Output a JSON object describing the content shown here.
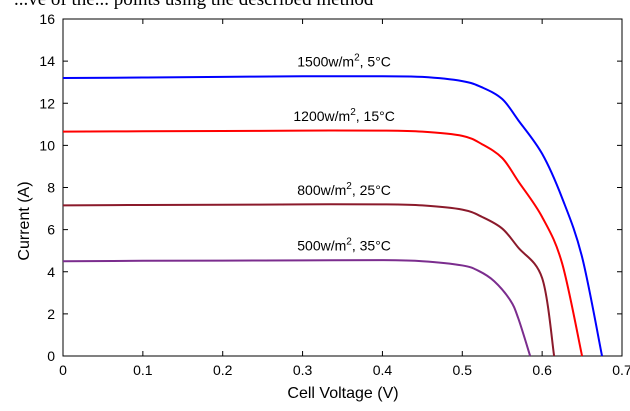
{
  "top_text": "...ve of the... points using the described method",
  "chart_data": {
    "type": "line",
    "xlabel": "Cell Voltage (V)",
    "ylabel": "Current (A)",
    "xlim": [
      0,
      0.7
    ],
    "ylim": [
      0,
      16
    ],
    "xticks": [
      0,
      0.1,
      0.2,
      0.3,
      0.4,
      0.5,
      0.6,
      0.7
    ],
    "yticks": [
      0,
      2,
      4,
      6,
      8,
      10,
      12,
      14,
      16
    ],
    "xtick_labels": [
      "0",
      "0.1",
      "0.2",
      "0.3",
      "0.4",
      "0.5",
      "0.6",
      "0.7"
    ],
    "ytick_labels": [
      "0",
      "2",
      "4",
      "6",
      "8",
      "10",
      "12",
      "14",
      "16"
    ],
    "grid": false,
    "series": [
      {
        "label_parts": [
          "1500w/m",
          "2",
          ", 5°C"
        ],
        "color": "#0000ff",
        "x": [
          0,
          0.1,
          0.2,
          0.3,
          0.4,
          0.45,
          0.5,
          0.525,
          0.55,
          0.57,
          0.6,
          0.625,
          0.65,
          0.675
        ],
        "y": [
          13.2,
          13.22,
          13.25,
          13.28,
          13.28,
          13.25,
          13.05,
          12.75,
          12.2,
          11.2,
          9.6,
          7.5,
          4.7,
          0
        ]
      },
      {
        "label_parts": [
          "1200w/m",
          "2",
          ", 15°C"
        ],
        "color": "#ff0000",
        "x": [
          0,
          0.1,
          0.2,
          0.3,
          0.4,
          0.45,
          0.5,
          0.525,
          0.55,
          0.57,
          0.6,
          0.625,
          0.65
        ],
        "y": [
          10.65,
          10.67,
          10.68,
          10.7,
          10.7,
          10.65,
          10.45,
          10.05,
          9.4,
          8.3,
          6.6,
          4.4,
          0
        ]
      },
      {
        "label_parts": [
          "800w/m",
          "2",
          ", 25°C"
        ],
        "color": "#8b1a2b",
        "x": [
          0,
          0.1,
          0.2,
          0.3,
          0.4,
          0.45,
          0.5,
          0.525,
          0.55,
          0.57,
          0.6,
          0.615
        ],
        "y": [
          7.15,
          7.17,
          7.18,
          7.2,
          7.2,
          7.15,
          6.95,
          6.6,
          6.05,
          5.15,
          3.7,
          0
        ]
      },
      {
        "label_parts": [
          "500w/m",
          "2",
          ", 35°C"
        ],
        "color": "#7b2d8e",
        "x": [
          0,
          0.1,
          0.2,
          0.3,
          0.4,
          0.45,
          0.5,
          0.52,
          0.54,
          0.56,
          0.57,
          0.585
        ],
        "y": [
          4.5,
          4.52,
          4.53,
          4.54,
          4.55,
          4.5,
          4.3,
          4.05,
          3.55,
          2.65,
          1.8,
          0
        ]
      }
    ]
  }
}
